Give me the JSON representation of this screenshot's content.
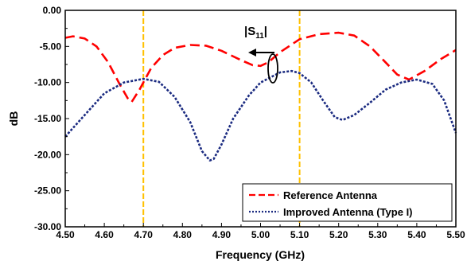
{
  "chart_data": {
    "type": "line",
    "title": "",
    "xlabel": "Frequency (GHz)",
    "ylabel": "dB",
    "xlim": [
      4.5,
      5.5
    ],
    "ylim": [
      -30,
      0
    ],
    "x_ticks": [
      "4.50",
      "4.60",
      "4.70",
      "4.80",
      "4.90",
      "5.00",
      "5.10",
      "5.20",
      "5.30",
      "5.40",
      "5.50"
    ],
    "y_ticks": [
      "0.00",
      "-5.00",
      "-10.00",
      "-15.00",
      "-20.00",
      "-25.00",
      "-30.00"
    ],
    "grid": false,
    "legend_position": "bottom-right",
    "vertical_markers": [
      4.7,
      5.1
    ],
    "annotation": {
      "base": "|S",
      "sub": "11",
      "tail": "|"
    },
    "series": [
      {
        "name": "Reference Antenna",
        "color": "#ff0000",
        "style": "dashed",
        "x": [
          4.5,
          4.52,
          4.55,
          4.58,
          4.61,
          4.64,
          4.66,
          4.67,
          4.69,
          4.72,
          4.75,
          4.78,
          4.82,
          4.86,
          4.9,
          4.95,
          4.98,
          5.0,
          5.02,
          5.05,
          5.1,
          5.15,
          5.2,
          5.24,
          5.28,
          5.32,
          5.35,
          5.38,
          5.42,
          5.46,
          5.5
        ],
        "y": [
          -3.8,
          -3.6,
          -3.9,
          -5.0,
          -7.2,
          -10.3,
          -12.2,
          -12.7,
          -11.0,
          -8.0,
          -6.2,
          -5.2,
          -4.8,
          -4.9,
          -5.6,
          -6.9,
          -7.6,
          -7.7,
          -7.2,
          -5.8,
          -4.0,
          -3.3,
          -3.1,
          -3.5,
          -5.0,
          -7.2,
          -8.9,
          -9.6,
          -8.4,
          -6.8,
          -5.5
        ]
      },
      {
        "name": "Improved Antenna (Type I)",
        "color": "#1a2a80",
        "style": "dotted",
        "x": [
          4.5,
          4.55,
          4.6,
          4.65,
          4.7,
          4.74,
          4.78,
          4.82,
          4.85,
          4.87,
          4.88,
          4.9,
          4.93,
          4.97,
          5.0,
          5.05,
          5.08,
          5.1,
          5.13,
          5.16,
          5.19,
          5.21,
          5.24,
          5.28,
          5.32,
          5.36,
          5.4,
          5.44,
          5.47,
          5.5
        ],
        "y": [
          -17.5,
          -14.5,
          -11.5,
          -10.0,
          -9.5,
          -9.9,
          -12.0,
          -15.5,
          -19.5,
          -20.8,
          -20.6,
          -18.6,
          -15.0,
          -11.8,
          -10.0,
          -8.6,
          -8.4,
          -8.7,
          -10.0,
          -12.5,
          -14.8,
          -15.2,
          -14.5,
          -12.8,
          -11.0,
          -10.0,
          -9.6,
          -10.2,
          -12.5,
          -17.0
        ]
      }
    ]
  }
}
